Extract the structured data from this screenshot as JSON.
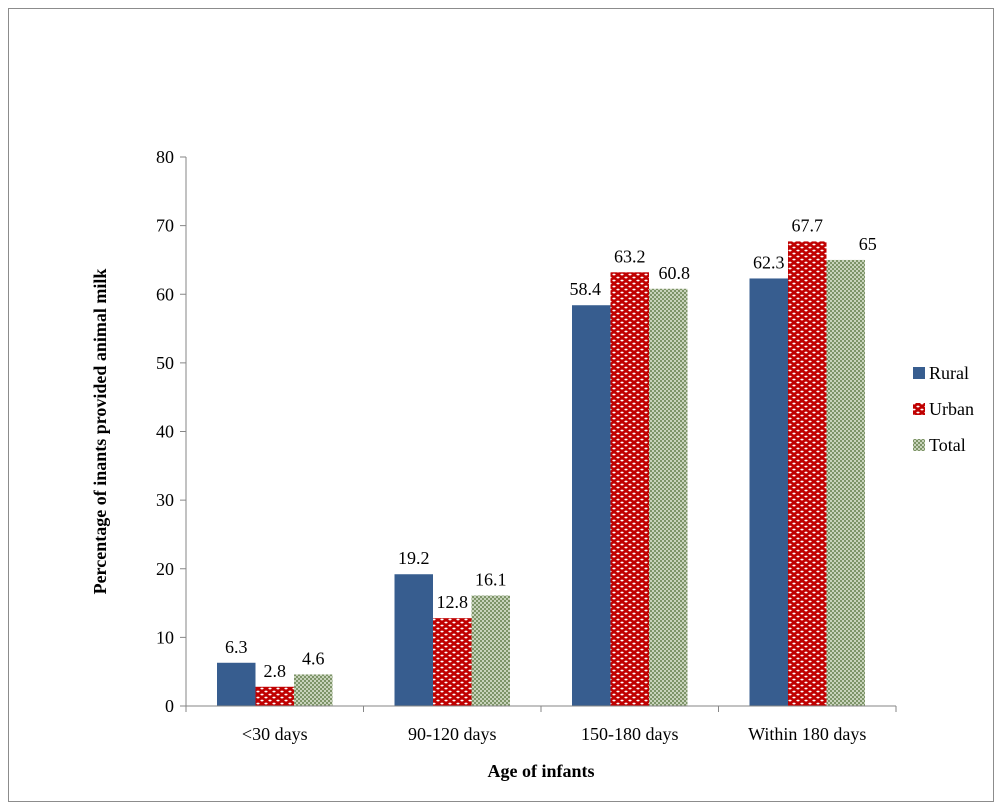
{
  "chart_data": {
    "type": "bar",
    "categories": [
      "<30 days",
      "90-120 days",
      "150-180 days",
      "Within 180 days"
    ],
    "series": [
      {
        "name": "Rural",
        "values": [
          6.3,
          19.2,
          58.4,
          62.3
        ],
        "color": "#375d8f",
        "pattern": "solid"
      },
      {
        "name": "Urban",
        "values": [
          2.8,
          12.8,
          63.2,
          67.7
        ],
        "color": "#c00000",
        "pattern": "white-dots"
      },
      {
        "name": "Total",
        "values": [
          4.6,
          16.1,
          60.8,
          65
        ],
        "color": "#8ea57a",
        "pattern": "checker"
      }
    ],
    "data_labels": [
      [
        "6.3",
        "19.2",
        "58.4",
        "62.3"
      ],
      [
        "2.8",
        "12.8",
        "63.2",
        "67.7"
      ],
      [
        "4.6",
        "16.1",
        "60.8",
        "65"
      ]
    ],
    "title": "",
    "xlabel": "Age of infants",
    "ylabel": "Percentage of inants provided  animal milk",
    "ylim": [
      0,
      80
    ],
    "yticks": [
      "0",
      "10",
      "20",
      "30",
      "40",
      "50",
      "60",
      "70",
      "80"
    ],
    "grid": false,
    "legend_position": "right"
  }
}
